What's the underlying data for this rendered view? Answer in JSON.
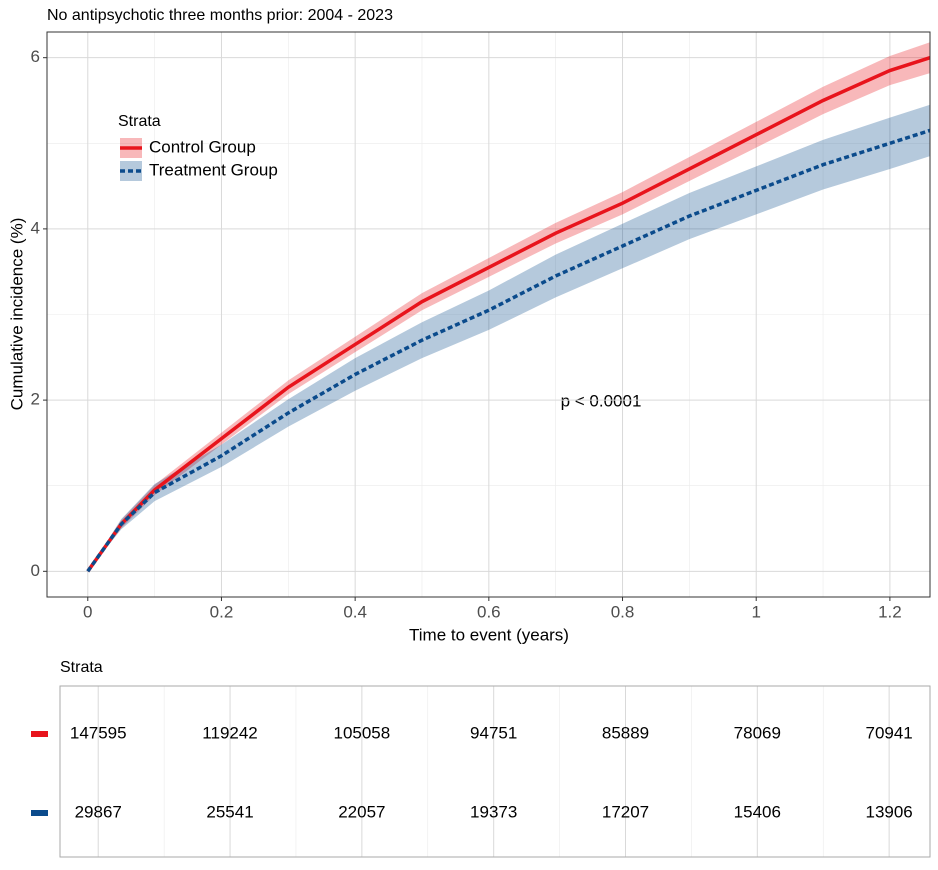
{
  "chart_data": [
    {
      "type": "line",
      "title": "No antipsychotic three months prior: 2004 - 2023",
      "x_label": "Time to event (years)",
      "y_label": "Cumulative incidence (%)",
      "annotation": "p < 0.0001",
      "legend_title": "Strata",
      "legend_position": "top-left",
      "grid": true,
      "x": [
        0,
        0.05,
        0.1,
        0.2,
        0.3,
        0.4,
        0.5,
        0.6,
        0.7,
        0.8,
        0.9,
        1.0,
        1.1,
        1.2,
        1.26
      ],
      "series": [
        {
          "name": "Control Group",
          "color": "#e8141c",
          "dash": false,
          "values": [
            0,
            0.55,
            0.95,
            1.55,
            2.15,
            2.65,
            3.15,
            3.55,
            3.95,
            4.3,
            4.7,
            5.1,
            5.5,
            5.85,
            6.0
          ],
          "lower": [
            0,
            0.5,
            0.89,
            1.48,
            2.07,
            2.56,
            3.05,
            3.44,
            3.83,
            4.17,
            4.56,
            4.95,
            5.34,
            5.68,
            5.82
          ],
          "upper": [
            0,
            0.6,
            1.01,
            1.62,
            2.23,
            2.74,
            3.25,
            3.66,
            4.07,
            4.43,
            4.84,
            5.25,
            5.66,
            6.02,
            6.18
          ]
        },
        {
          "name": "Treatment Group",
          "color": "#0b4b8c",
          "dash": true,
          "values": [
            0,
            0.55,
            0.92,
            1.35,
            1.85,
            2.3,
            2.7,
            3.05,
            3.45,
            3.8,
            4.15,
            4.45,
            4.75,
            5.0,
            5.15
          ],
          "lower": [
            0,
            0.49,
            0.82,
            1.22,
            1.69,
            2.11,
            2.49,
            2.82,
            3.2,
            3.54,
            3.88,
            4.17,
            4.46,
            4.7,
            4.85
          ],
          "upper": [
            0,
            0.61,
            1.02,
            1.48,
            2.01,
            2.49,
            2.91,
            3.28,
            3.7,
            4.06,
            4.42,
            4.73,
            5.04,
            5.3,
            5.45
          ]
        }
      ],
      "xlim": [
        -0.061,
        1.26
      ],
      "xticks": [
        0,
        0.2,
        0.4,
        0.6,
        0.8,
        1,
        1.2
      ],
      "ylim": [
        -0.3,
        6.3
      ],
      "yticks": [
        0,
        2,
        4,
        6
      ]
    },
    {
      "type": "table",
      "title": "Strata",
      "x": [
        0,
        0.2,
        0.4,
        0.6,
        0.8,
        1,
        1.2
      ],
      "xlim": [
        -0.058,
        1.262
      ],
      "series": [
        {
          "color": "#e8141c",
          "values": [
            147595,
            119242,
            105058,
            94751,
            85889,
            78069,
            70941
          ]
        },
        {
          "color": "#0b4b8c",
          "values": [
            29867,
            25541,
            22057,
            19373,
            17207,
            15406,
            13906
          ]
        }
      ]
    }
  ]
}
